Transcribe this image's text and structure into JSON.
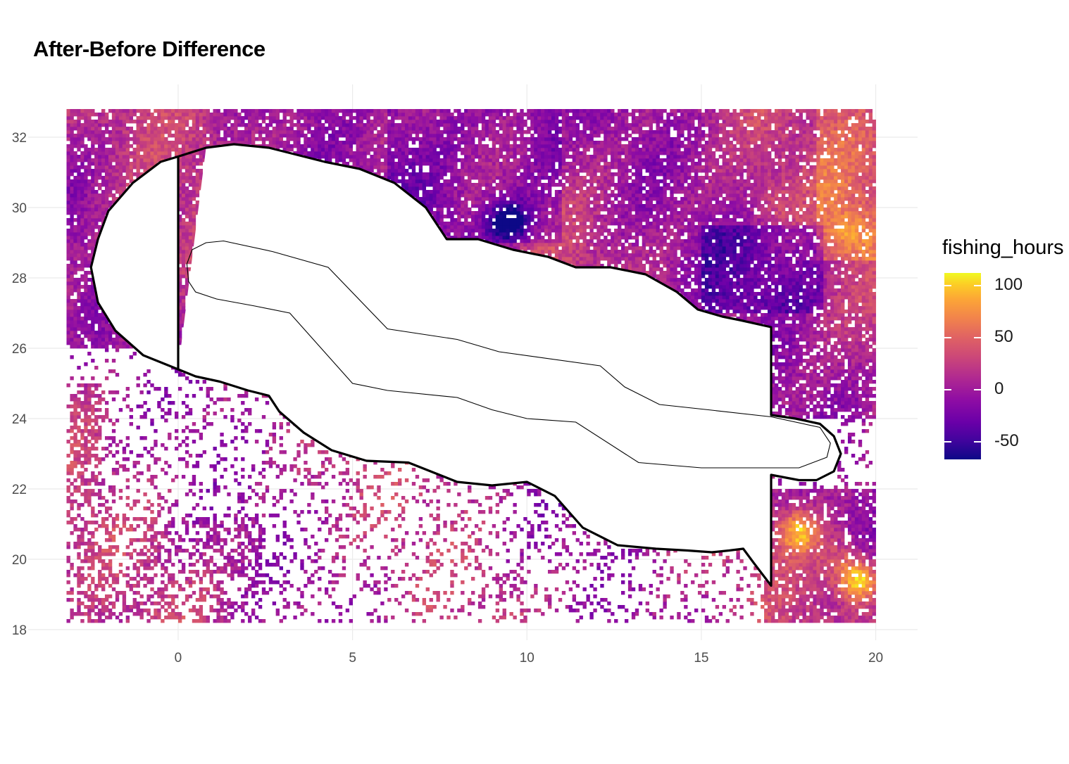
{
  "chart_data": {
    "type": "heatmap",
    "title": "After-Before Difference",
    "xlabel": "",
    "ylabel": "",
    "xlim": [
      -4.3,
      21.2
    ],
    "ylim": [
      17.7,
      33.5
    ],
    "grid_extent": {
      "x": [
        -3.2,
        20
      ],
      "y": [
        18.2,
        32.8
      ]
    },
    "x_ticks": [
      0,
      5,
      10,
      15,
      20
    ],
    "y_ticks": [
      18,
      20,
      22,
      24,
      26,
      28,
      30,
      32
    ],
    "grid": true,
    "legend": {
      "title": "fishing_hours",
      "placement": "right",
      "range": [
        -67,
        112
      ],
      "ticks": [
        100,
        50,
        0,
        -50
      ],
      "colors": [
        "#0d0887",
        "#6a00a8",
        "#b12a90",
        "#e16462",
        "#fca636",
        "#f0f921"
      ]
    },
    "hotspots": [
      {
        "x": 17.8,
        "y": 20.8,
        "value": 90
      },
      {
        "x": 19.5,
        "y": 19.4,
        "value": 112
      },
      {
        "x": 19.3,
        "y": 29.3,
        "value": 45
      },
      {
        "x": 17.0,
        "y": 30.2,
        "value": 30
      },
      {
        "x": 9.5,
        "y": 29.6,
        "value": -67
      },
      {
        "x": 19.0,
        "y": 20.0,
        "value": 40
      }
    ],
    "outer_boundary": [
      [
        0,
        31.45
      ],
      [
        0.8,
        31.7
      ],
      [
        1.6,
        31.8
      ],
      [
        2.6,
        31.7
      ],
      [
        3.2,
        31.55
      ],
      [
        4.2,
        31.3
      ],
      [
        5.2,
        31.1
      ],
      [
        6.2,
        30.7
      ],
      [
        7.1,
        30.0
      ],
      [
        7.7,
        29.1
      ],
      [
        8.6,
        29.1
      ],
      [
        9.6,
        28.8
      ],
      [
        10.6,
        28.6
      ],
      [
        11.4,
        28.3
      ],
      [
        12.4,
        28.3
      ],
      [
        13.4,
        28.1
      ],
      [
        14.3,
        27.6
      ],
      [
        14.9,
        27.1
      ],
      [
        15.6,
        26.9
      ],
      [
        16.1,
        26.8
      ],
      [
        17.0,
        26.6
      ],
      [
        17.0,
        24.1
      ],
      [
        17.7,
        24.0
      ],
      [
        18.4,
        23.85
      ],
      [
        18.8,
        23.5
      ],
      [
        19.0,
        23.0
      ],
      [
        18.8,
        22.5
      ],
      [
        18.3,
        22.25
      ],
      [
        17.8,
        22.25
      ],
      [
        17.0,
        22.4
      ],
      [
        17.0,
        19.25
      ],
      [
        16.5,
        19.9
      ],
      [
        16.2,
        20.3
      ],
      [
        15.8,
        20.25
      ],
      [
        15.3,
        20.2
      ],
      [
        14.6,
        20.25
      ],
      [
        13.7,
        20.3
      ],
      [
        12.6,
        20.4
      ],
      [
        11.6,
        20.9
      ],
      [
        10.8,
        21.8
      ],
      [
        10.0,
        22.2
      ],
      [
        9.0,
        22.1
      ],
      [
        8.0,
        22.2
      ],
      [
        6.6,
        22.75
      ],
      [
        5.4,
        22.8
      ],
      [
        4.4,
        23.1
      ],
      [
        3.6,
        23.6
      ],
      [
        2.9,
        24.2
      ],
      [
        2.6,
        24.65
      ],
      [
        2.0,
        24.8
      ],
      [
        1.2,
        25.05
      ],
      [
        0.5,
        25.2
      ],
      [
        0,
        25.4
      ],
      [
        0,
        31.45
      ]
    ],
    "outer_arc_left": [
      [
        0,
        31.45
      ],
      [
        -0.5,
        31.3
      ],
      [
        -1.3,
        30.7
      ],
      [
        -2.0,
        29.9
      ],
      [
        -2.3,
        29.1
      ],
      [
        -2.5,
        28.3
      ],
      [
        -2.3,
        27.3
      ],
      [
        -1.8,
        26.5
      ],
      [
        -1.0,
        25.8
      ],
      [
        0,
        25.4
      ]
    ],
    "inner_boundary": [
      [
        1.3,
        29.05
      ],
      [
        2.7,
        28.75
      ],
      [
        4.3,
        28.3
      ],
      [
        6.0,
        26.55
      ],
      [
        8.0,
        26.25
      ],
      [
        9.2,
        25.9
      ],
      [
        12.1,
        25.5
      ],
      [
        12.8,
        24.9
      ],
      [
        13.8,
        24.4
      ],
      [
        15.2,
        24.25
      ],
      [
        17.0,
        24.05
      ],
      [
        18.4,
        23.75
      ],
      [
        18.7,
        23.3
      ],
      [
        18.6,
        22.9
      ],
      [
        17.8,
        22.6
      ],
      [
        15.0,
        22.6
      ],
      [
        13.2,
        22.75
      ],
      [
        11.4,
        23.9
      ],
      [
        10.0,
        24.0
      ],
      [
        9.0,
        24.25
      ],
      [
        8.0,
        24.6
      ],
      [
        6.0,
        24.8
      ],
      [
        5.0,
        25.0
      ],
      [
        3.2,
        27.0
      ],
      [
        2.2,
        27.2
      ],
      [
        1.1,
        27.4
      ],
      [
        0.5,
        27.6
      ],
      [
        0.3,
        27.9
      ],
      [
        0.25,
        28.4
      ],
      [
        0.4,
        28.8
      ],
      [
        0.8,
        29.0
      ],
      [
        1.3,
        29.05
      ]
    ]
  }
}
